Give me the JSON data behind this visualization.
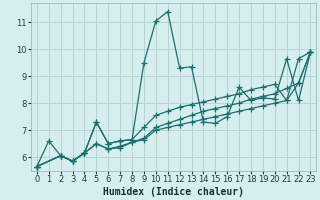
{
  "title": "",
  "xlabel": "Humidex (Indice chaleur)",
  "ylabel": "",
  "background_color": "#d7eeee",
  "grid_color": "#b8d4d4",
  "line_color": "#1a7070",
  "xlim": [
    -0.5,
    23.5
  ],
  "ylim": [
    5.5,
    11.7
  ],
  "xticks": [
    0,
    1,
    2,
    3,
    4,
    5,
    6,
    7,
    8,
    9,
    10,
    11,
    12,
    13,
    14,
    15,
    16,
    17,
    18,
    19,
    20,
    21,
    22,
    23
  ],
  "yticks": [
    6,
    7,
    8,
    9,
    10,
    11
  ],
  "series": [
    {
      "x": [
        0,
        1,
        2,
        3,
        4,
        5,
        6,
        7,
        8,
        9,
        10,
        11,
        12,
        13,
        14,
        15,
        16,
        17,
        18,
        19,
        20,
        21,
        22,
        23
      ],
      "y": [
        5.65,
        6.6,
        6.05,
        5.85,
        6.15,
        7.3,
        6.5,
        6.6,
        6.65,
        9.5,
        11.05,
        11.4,
        9.3,
        9.35,
        7.3,
        7.25,
        7.5,
        8.6,
        8.1,
        8.2,
        8.15,
        9.65,
        8.1,
        9.9
      ]
    },
    {
      "x": [
        0,
        2,
        3,
        4,
        5,
        6,
        7,
        8,
        9,
        10,
        11,
        12,
        13,
        14,
        15,
        16,
        17,
        18,
        19,
        20,
        21,
        22,
        23
      ],
      "y": [
        5.65,
        6.05,
        5.85,
        6.15,
        6.5,
        6.3,
        6.4,
        6.55,
        6.7,
        7.1,
        7.25,
        7.4,
        7.55,
        7.7,
        7.8,
        7.9,
        8.0,
        8.15,
        8.25,
        8.35,
        8.55,
        8.75,
        9.9
      ]
    },
    {
      "x": [
        0,
        2,
        3,
        4,
        5,
        6,
        7,
        8,
        9,
        10,
        11,
        12,
        13,
        14,
        15,
        16,
        17,
        18,
        19,
        20,
        21,
        22,
        23
      ],
      "y": [
        5.65,
        6.05,
        5.85,
        6.15,
        7.3,
        6.5,
        6.6,
        6.65,
        7.1,
        7.55,
        7.7,
        7.85,
        7.95,
        8.05,
        8.15,
        8.25,
        8.35,
        8.5,
        8.6,
        8.7,
        8.1,
        9.65,
        9.9
      ]
    },
    {
      "x": [
        0,
        2,
        3,
        4,
        5,
        6,
        7,
        8,
        9,
        10,
        11,
        12,
        13,
        14,
        15,
        16,
        17,
        18,
        19,
        20,
        21,
        22,
        23
      ],
      "y": [
        5.65,
        6.05,
        5.85,
        6.15,
        6.5,
        6.3,
        6.35,
        6.55,
        6.65,
        7.0,
        7.1,
        7.2,
        7.3,
        7.4,
        7.5,
        7.6,
        7.7,
        7.8,
        7.9,
        8.0,
        8.1,
        8.75,
        9.9
      ]
    }
  ]
}
